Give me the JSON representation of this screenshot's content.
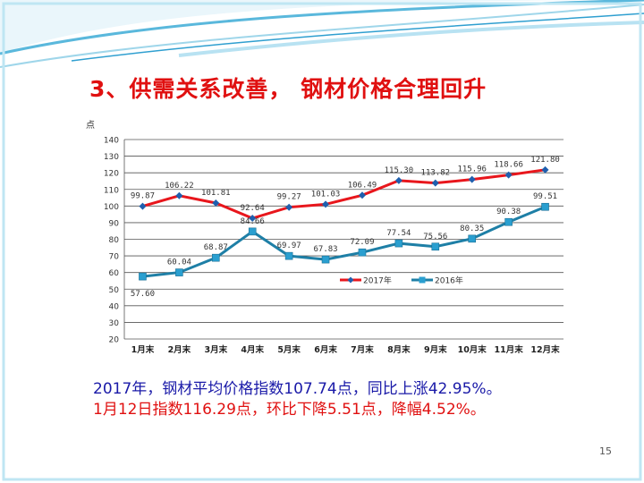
{
  "slide": {
    "title": "3、供需关系改善， 钢材价格合理回升",
    "note_line1": "2017年，钢材平均价格指数107.74点，同比上涨42.95%。",
    "note_line2": "1月12日指数116.29点，环比下降5.51点，降幅4.52%。",
    "page_number": "15",
    "colors": {
      "title": "#e01010",
      "note_line1": "#1a1aa8",
      "note_line2": "#e01010"
    }
  },
  "chart_data": {
    "type": "line",
    "ylabel": "点",
    "ylim": [
      20,
      140
    ],
    "yticks": [
      20,
      30,
      40,
      50,
      60,
      70,
      80,
      90,
      100,
      110,
      120,
      130,
      140
    ],
    "grid": true,
    "legend_placement": "center-right",
    "categories": [
      "1月末",
      "2月末",
      "3月末",
      "4月末",
      "5月末",
      "6月末",
      "7月末",
      "8月末",
      "9月末",
      "10月末",
      "11月末",
      "12月末"
    ],
    "series": [
      {
        "name": "2017年",
        "color": "#e8161c",
        "marker": "diamond",
        "marker_color": "#1f5fae",
        "values": [
          99.87,
          106.22,
          101.81,
          92.64,
          99.27,
          101.03,
          106.49,
          115.3,
          113.82,
          115.96,
          118.66,
          121.8
        ],
        "labels": [
          "99.87",
          "106.22",
          "101.81",
          "92.64",
          "99.27",
          "101.03",
          "106.49",
          "115.30",
          "113.82",
          "115.96",
          "118.66",
          "121.80"
        ]
      },
      {
        "name": "2016年",
        "color": "#1e7fa6",
        "marker": "square",
        "marker_color": "#2a9fd0",
        "values": [
          57.6,
          60.04,
          68.87,
          84.66,
          69.97,
          67.83,
          72.09,
          77.54,
          75.56,
          80.35,
          90.38,
          99.51
        ],
        "labels": [
          "57.60",
          "60.04",
          "68.87",
          "84.66",
          "69.97",
          "67.83",
          "72.09",
          "77.54",
          "75.56",
          "80.35",
          "90.38",
          "99.51"
        ]
      }
    ]
  }
}
